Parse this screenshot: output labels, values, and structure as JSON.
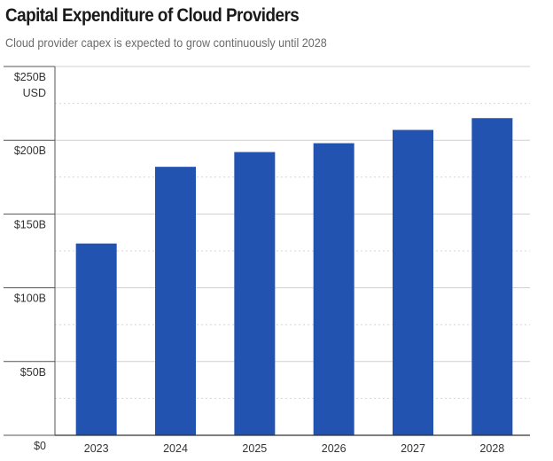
{
  "chart_data": {
    "type": "bar",
    "title": "Capital Expenditure of Cloud Providers",
    "subtitle": "Cloud provider capex is expected to grow continuously until 2028",
    "y_unit": "USD",
    "categories": [
      "2023",
      "2024",
      "2025",
      "2026",
      "2027",
      "2028"
    ],
    "values": [
      130,
      182,
      192,
      198,
      207,
      215
    ],
    "value_unit": "$B",
    "ylim": [
      0,
      250
    ],
    "y_ticks": [
      {
        "value": 0,
        "label": "$0"
      },
      {
        "value": 50,
        "label": "$50B"
      },
      {
        "value": 100,
        "label": "$100B"
      },
      {
        "value": 150,
        "label": "$150B"
      },
      {
        "value": 200,
        "label": "$200B"
      },
      {
        "value": 250,
        "label": "$250B"
      }
    ],
    "y_minor_ticks": [
      25,
      75,
      125,
      175,
      225
    ],
    "grid": true,
    "legend": "none",
    "bar_color": "#2253b0"
  }
}
